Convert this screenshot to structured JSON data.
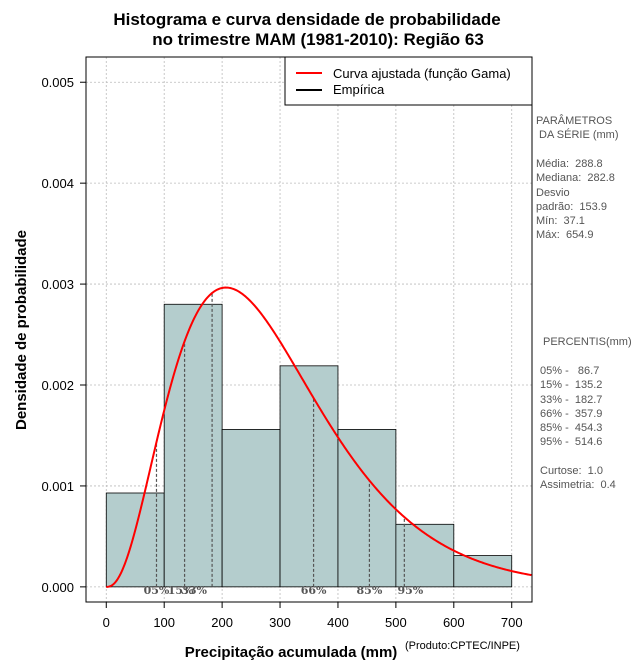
{
  "chart_data": {
    "type": "histogram",
    "title": [
      "Histograma e curva densidade de probabilidade",
      "no trimestre MAM (1981-2010): Região 63"
    ],
    "xlabel": "Precipitação acumulada (mm)",
    "ylabel": "Densidade de probabilidade",
    "xlim": [
      -35,
      735
    ],
    "ylim": [
      -0.00015,
      0.00525
    ],
    "x_ticks": [
      0,
      100,
      200,
      300,
      400,
      500,
      600,
      700
    ],
    "y_ticks": [
      0.0,
      0.001,
      0.002,
      0.003,
      0.004,
      0.005
    ],
    "y_tick_labels": [
      "0.000",
      "0.001",
      "0.002",
      "0.003",
      "0.004",
      "0.005"
    ],
    "bins": [
      {
        "from": 0,
        "to": 100,
        "density": 0.00093
      },
      {
        "from": 100,
        "to": 200,
        "density": 0.0028
      },
      {
        "from": 200,
        "to": 300,
        "density": 0.00156
      },
      {
        "from": 300,
        "to": 400,
        "density": 0.00219
      },
      {
        "from": 400,
        "to": 500,
        "density": 0.00156
      },
      {
        "from": 500,
        "to": 600,
        "density": 0.00062
      },
      {
        "from": 600,
        "to": 700,
        "density": 0.00031
      }
    ],
    "gamma_fit": {
      "shape": 3.52,
      "scale": 82.0
    },
    "percentile_lines": [
      {
        "label": "05%",
        "value": 86.7
      },
      {
        "label": "15%",
        "value": 135.2
      },
      {
        "label": "33%",
        "value": 182.7
      },
      {
        "label": "66%",
        "value": 357.9
      },
      {
        "label": "85%",
        "value": 454.3
      },
      {
        "label": "95%",
        "value": 514.6
      }
    ],
    "grid": true,
    "legend": {
      "position": "top-right",
      "entries": [
        {
          "label": "Curva ajustada (função Gama)",
          "color": "#ff0000"
        },
        {
          "label": "Empírica",
          "color": "#000000"
        }
      ]
    },
    "colors": {
      "bar_fill": "#b4cdcd",
      "bar_border": "#000000",
      "curve": "#ff0000",
      "grid": "#bbbbbb",
      "percentile_line": "#555555"
    }
  },
  "side_panel": {
    "params_title": "PARÂMETROS\n DA SÉRIE (mm)",
    "params_text": "Média:  288.8\nMediana:  282.8\nDesvio\npadrão:  153.9\nMín:  37.1\nMáx:  654.9",
    "percentis_title": "PERCENTIS(mm)",
    "percentis_text": "05% -   86.7\n15% -  135.2\n33% -  182.7\n66% -  357.9\n85% -  454.3\n95% -  514.6",
    "stats_text": "Curtose:  1.0\nAssimetria:  0.4"
  },
  "credit": "(Produto:CPTEC/INPE)"
}
